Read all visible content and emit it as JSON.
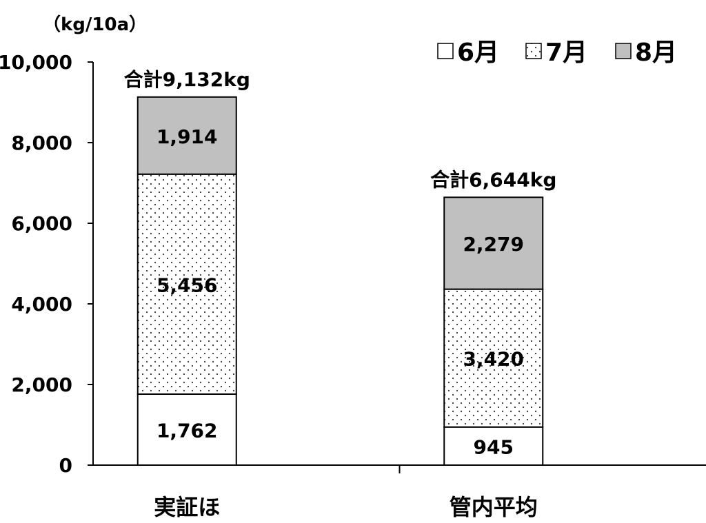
{
  "chart_data": {
    "type": "stacked-bar",
    "ylabel": "（kg/10a）",
    "ylim": [
      0,
      10000
    ],
    "yticks": [
      "0",
      "2,000",
      "4,000",
      "6,000",
      "8,000",
      "10,000"
    ],
    "ytick_values": [
      0,
      2000,
      4000,
      6000,
      8000,
      10000
    ],
    "categories": [
      "実証ほ",
      "管内平均"
    ],
    "series": [
      {
        "name": "6月",
        "values": [
          1762,
          945
        ],
        "labels": [
          "1,762",
          "945"
        ],
        "fill": "#ffffff",
        "pattern": "none"
      },
      {
        "name": "7月",
        "values": [
          5456,
          3420
        ],
        "labels": [
          "5,456",
          "3,420"
        ],
        "fill": "#ffffff",
        "pattern": "dots"
      },
      {
        "name": "8月",
        "values": [
          1914,
          2279
        ],
        "labels": [
          "1,914",
          "2,279"
        ],
        "fill": "#c0c0c0",
        "pattern": "none"
      }
    ],
    "totals": [
      "合計9,132kg",
      "合計6,644kg"
    ],
    "legend": "top-right",
    "grid": false
  }
}
